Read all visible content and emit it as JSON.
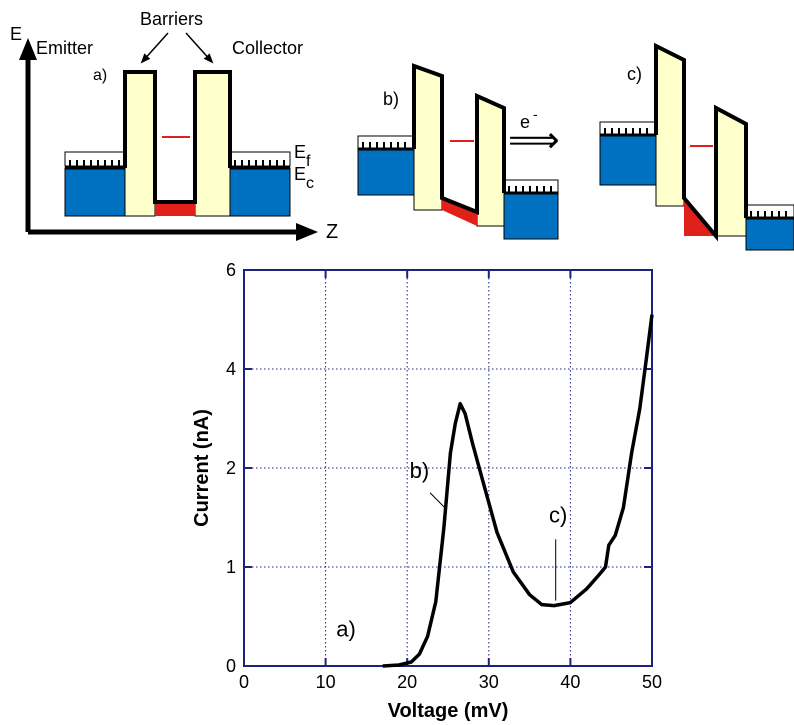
{
  "diagram": {
    "axis_e": "E",
    "axis_z": "Z",
    "emitter": "Emitter",
    "barriers": "Barriers",
    "collector": "Collector",
    "ef_main": "E",
    "ef_sub": "f",
    "ec_main": "E",
    "ec_sub": "c",
    "panel_a": "a)",
    "panel_b": "b)",
    "panel_c": "c)",
    "electron_main": "e",
    "electron_sup": "-",
    "arrow_glyph": "⟹",
    "colors": {
      "conduction_band": "#0070c0",
      "barrier_fill": "#ffffcc",
      "well_fill": "#e0201a",
      "fermi_line": "#e0201a",
      "outline": "#000000"
    }
  },
  "chart_data": {
    "type": "line",
    "xlabel": "Voltage (mV)",
    "ylabel": "Current (nA)",
    "xlim": [
      0,
      50
    ],
    "ylim": [
      0,
      6
    ],
    "x_ticks": [
      0,
      10,
      20,
      30,
      40,
      50
    ],
    "y_ticks": [
      0,
      1,
      2,
      4,
      6
    ],
    "y_axis_note": "non-uniform scale: 0,1,2 spaced 1:1 then 2 units per major grid above 2",
    "grid": true,
    "series": [
      {
        "points": [
          [
            17,
            0
          ],
          [
            19,
            0.01
          ],
          [
            20.5,
            0.04
          ],
          [
            21.5,
            0.12
          ],
          [
            22.5,
            0.3
          ],
          [
            23.5,
            0.65
          ],
          [
            24.5,
            1.4
          ],
          [
            25.3,
            2.3
          ],
          [
            25.9,
            2.9
          ],
          [
            26.5,
            3.3
          ],
          [
            27.1,
            3.1
          ],
          [
            28,
            2.5
          ],
          [
            29.5,
            1.8
          ],
          [
            31,
            1.35
          ],
          [
            33,
            0.95
          ],
          [
            35,
            0.72
          ],
          [
            36.5,
            0.62
          ],
          [
            38,
            0.61
          ],
          [
            40,
            0.64
          ],
          [
            42,
            0.78
          ],
          [
            43.5,
            0.92
          ],
          [
            44.3,
            1.0
          ],
          [
            44.7,
            1.22
          ],
          [
            45.5,
            1.32
          ],
          [
            46.5,
            1.6
          ],
          [
            47.5,
            2.3
          ],
          [
            48.5,
            3.2
          ],
          [
            49.3,
            4.2
          ],
          [
            50,
            5.1
          ]
        ]
      }
    ],
    "annotations": [
      {
        "label": "a)",
        "x": 12.5,
        "y": 0.3
      },
      {
        "label": "b)",
        "x": 21.5,
        "y": 1.9
      },
      {
        "label": "c)",
        "x": 38.5,
        "y": 1.45
      }
    ]
  }
}
